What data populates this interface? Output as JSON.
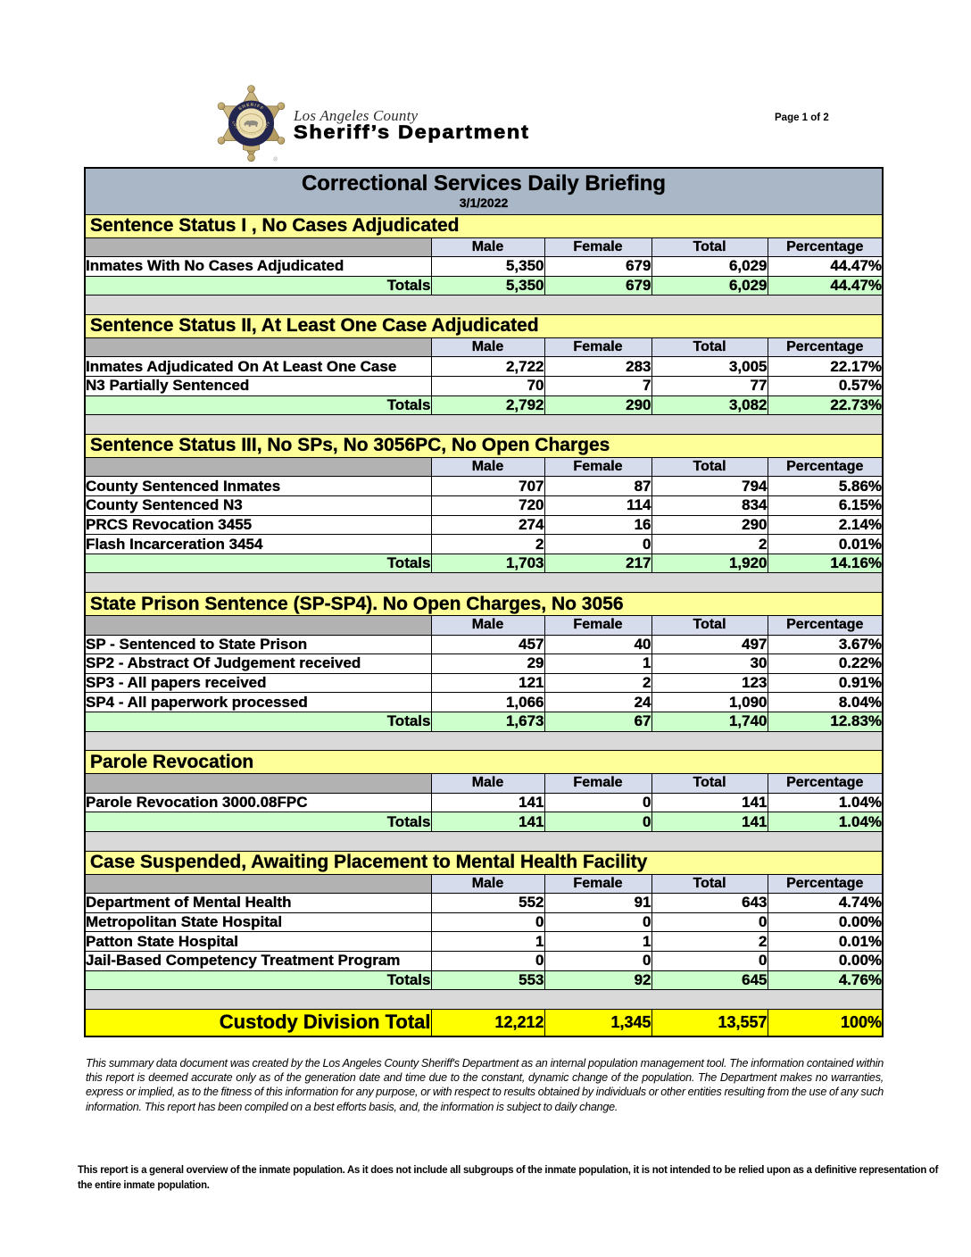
{
  "page": {
    "page_label": "Page 1 of 2"
  },
  "logo": {
    "county": "Los Angeles County",
    "department": "Sheriff’s Department",
    "badge_top_text": "SHERIFF",
    "badge_bottom_text": "LOS ANGELES COUNTY",
    "registered_mark": "®"
  },
  "title": {
    "heading": "Correctional Services Daily Briefing",
    "date": "3/1/2022"
  },
  "columns": [
    "Male",
    "Female",
    "Total",
    "Percentage"
  ],
  "totals_label": "Totals",
  "sections": [
    {
      "title": "Sentence Status I , No Cases Adjudicated",
      "rows": [
        {
          "label": "Inmates With No Cases Adjudicated",
          "male": "5,350",
          "female": "679",
          "total": "6,029",
          "pct": "44.47%"
        }
      ],
      "totals": {
        "male": "5,350",
        "female": "679",
        "total": "6,029",
        "pct": "44.47%"
      }
    },
    {
      "title": "Sentence Status II, At Least One Case Adjudicated",
      "rows": [
        {
          "label": "Inmates Adjudicated On At Least One Case",
          "male": "2,722",
          "female": "283",
          "total": "3,005",
          "pct": "22.17%"
        },
        {
          "label": "N3 Partially Sentenced",
          "male": "70",
          "female": "7",
          "total": "77",
          "pct": "0.57%"
        }
      ],
      "totals": {
        "male": "2,792",
        "female": "290",
        "total": "3,082",
        "pct": "22.73%"
      }
    },
    {
      "title": "Sentence Status III, No SPs, No 3056PC, No Open Charges",
      "rows": [
        {
          "label": "County Sentenced Inmates",
          "male": "707",
          "female": "87",
          "total": "794",
          "pct": "5.86%"
        },
        {
          "label": "County Sentenced N3",
          "male": "720",
          "female": "114",
          "total": "834",
          "pct": "6.15%"
        },
        {
          "label": "PRCS Revocation 3455",
          "male": "274",
          "female": "16",
          "total": "290",
          "pct": "2.14%"
        },
        {
          "label": "Flash Incarceration 3454",
          "male": "2",
          "female": "0",
          "total": "2",
          "pct": "0.01%"
        }
      ],
      "totals": {
        "male": "1,703",
        "female": "217",
        "total": "1,920",
        "pct": "14.16%"
      }
    },
    {
      "title": "State Prison Sentence (SP-SP4). No Open Charges, No 3056",
      "rows": [
        {
          "label": "SP - Sentenced to State Prison",
          "male": "457",
          "female": "40",
          "total": "497",
          "pct": "3.67%"
        },
        {
          "label": "SP2 - Abstract Of Judgement received",
          "male": "29",
          "female": "1",
          "total": "30",
          "pct": "0.22%"
        },
        {
          "label": "SP3 - All papers received",
          "male": "121",
          "female": "2",
          "total": "123",
          "pct": "0.91%"
        },
        {
          "label": "SP4 - All paperwork processed",
          "male": "1,066",
          "female": "24",
          "total": "1,090",
          "pct": "8.04%"
        }
      ],
      "totals": {
        "male": "1,673",
        "female": "67",
        "total": "1,740",
        "pct": "12.83%"
      }
    },
    {
      "title": "Parole Revocation",
      "rows": [
        {
          "label": "Parole Revocation 3000.08FPC",
          "male": "141",
          "female": "0",
          "total": "141",
          "pct": "1.04%"
        }
      ],
      "totals": {
        "male": "141",
        "female": "0",
        "total": "141",
        "pct": "1.04%"
      }
    },
    {
      "title": "Case Suspended, Awaiting Placement to Mental Health Facility",
      "rows": [
        {
          "label": "Department of Mental Health",
          "male": "552",
          "female": "91",
          "total": "643",
          "pct": "4.74%"
        },
        {
          "label": "Metropolitan State Hospital",
          "male": "0",
          "female": "0",
          "total": "0",
          "pct": "0.00%"
        },
        {
          "label": "Patton State Hospital",
          "male": "1",
          "female": "1",
          "total": "2",
          "pct": "0.01%"
        },
        {
          "label": "Jail-Based Competency Treatment Program",
          "male": "0",
          "female": "0",
          "total": "0",
          "pct": "0.00%"
        }
      ],
      "totals": {
        "male": "553",
        "female": "92",
        "total": "645",
        "pct": "4.76%"
      }
    }
  ],
  "grand_total": {
    "label": "Custody Division Total",
    "male": "12,212",
    "female": "1,345",
    "total": "13,557",
    "pct": "100%"
  },
  "disclaimer": "This summary data document was created by the Los Angeles County Sheriff's Department as an internal population management tool.  The information contained within this report is deemed accurate only as of the generation date and time due to the constant, dynamic change of the population.  The Department makes no warranties, express or implied, as to the fitness of this information for any purpose, or with respect to results obtained by individuals or other entities resulting from the use of any such information.  This report has been compiled on a best efforts basis, and, the information is subject to daily change.",
  "footnote": "This report is a general overview of the inmate population.  As it does not include all subgroups of the inmate population, it is not intended to be relied upon as a definitive representation of the entire inmate population.",
  "colors": {
    "title_bar": "#aab7c6",
    "section_header": "#ffff99",
    "column_header": "#dadeed",
    "column_header_corner": "#b2b2b2",
    "totals_row": "#ccffcc",
    "grand_total_row": "#ffff00",
    "gap_row": "#d9d9d9",
    "border": "#000000"
  }
}
